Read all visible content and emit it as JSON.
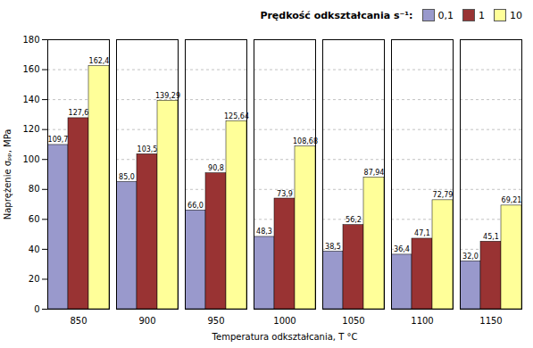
{
  "chart_data": {
    "type": "bar",
    "categories": [
      850,
      900,
      950,
      1000,
      1050,
      1100,
      1150
    ],
    "series": [
      {
        "name": "0,1",
        "color": "#9999CC",
        "values": [
          109.7,
          85.0,
          66.0,
          48.3,
          38.5,
          36.4,
          32.0
        ],
        "value_labels": [
          "109,7",
          "85,0",
          "66,0",
          "48,3",
          "38,5",
          "36,4",
          "32,0"
        ]
      },
      {
        "name": "1",
        "color": "#993333",
        "values": [
          127.6,
          103.5,
          90.8,
          73.9,
          56.2,
          47.1,
          45.1
        ],
        "value_labels": [
          "127,6",
          "103,5",
          "90,8",
          "73,9",
          "56,2",
          "47,1",
          "45,1"
        ]
      },
      {
        "name": "10",
        "color": "#FFFF99",
        "values": [
          162.4,
          139.29,
          125.64,
          108.68,
          87.94,
          72.79,
          69.21
        ],
        "value_labels": [
          "162,4",
          "139,29",
          "125,64",
          "108,68",
          "87,94",
          "72,79",
          "69,21"
        ]
      }
    ],
    "legend_title": "Prędkość odkształcania s⁻¹:",
    "xlabel": "Temperatura odkształcania, T °C",
    "ylabel": "Naprężenie σₚₚ, MPa",
    "ylim": [
      0,
      180
    ],
    "yticks": [
      0,
      20,
      40,
      60,
      80,
      100,
      120,
      140,
      160,
      180
    ],
    "grid": true,
    "legend": "upper right",
    "data_labels": true
  }
}
